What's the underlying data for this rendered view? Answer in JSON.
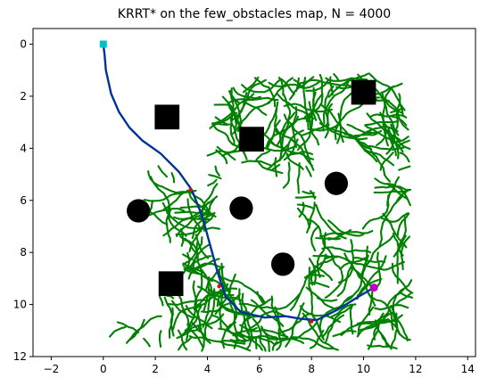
{
  "chart_data": {
    "type": "scatter",
    "title": "KRRT* on the few_obstacles map, N = 4000",
    "xlabel": "",
    "ylabel": "",
    "xlim": [
      -2.7,
      14.3
    ],
    "ylim": [
      12,
      -0.6
    ],
    "y_inverted": true,
    "grid": false,
    "xticks": [
      -2,
      0,
      2,
      4,
      6,
      8,
      10,
      12,
      14
    ],
    "yticks": [
      0,
      2,
      4,
      6,
      8,
      10,
      12
    ],
    "colors": {
      "tree": "#008000",
      "path": "#003399",
      "start": "#00c0c8",
      "goal": "#c000c0",
      "waypoint": "#d01010",
      "obstacle": "#000000"
    },
    "start": [
      0,
      0
    ],
    "goal": [
      10.4,
      9.35
    ],
    "obstacles": [
      {
        "shape": "square",
        "x": 2.45,
        "y": 2.8,
        "size": 0.95
      },
      {
        "shape": "square",
        "x": 5.7,
        "y": 3.65,
        "size": 0.95
      },
      {
        "shape": "square",
        "x": 10.0,
        "y": 1.85,
        "size": 0.95
      },
      {
        "shape": "square",
        "x": 2.6,
        "y": 9.2,
        "size": 0.95
      },
      {
        "shape": "circle",
        "x": 1.35,
        "y": 6.4,
        "r": 0.45
      },
      {
        "shape": "circle",
        "x": 5.3,
        "y": 6.3,
        "r": 0.45
      },
      {
        "shape": "circle",
        "x": 8.95,
        "y": 5.35,
        "r": 0.45
      },
      {
        "shape": "circle",
        "x": 6.9,
        "y": 8.45,
        "r": 0.45
      }
    ],
    "tree_region": [
      [
        1.0,
        4.3
      ],
      [
        2.0,
        4.6
      ],
      [
        3.0,
        5.0
      ],
      [
        3.8,
        5.6
      ],
      [
        4.0,
        4.2
      ],
      [
        4.2,
        2.2
      ],
      [
        5.5,
        1.3
      ],
      [
        7.5,
        1.2
      ],
      [
        9.5,
        1.0
      ],
      [
        11.6,
        1.0
      ],
      [
        11.8,
        3.5
      ],
      [
        11.8,
        6.5
      ],
      [
        11.9,
        9.0
      ],
      [
        11.8,
        11.8
      ],
      [
        9.0,
        11.8
      ],
      [
        6.0,
        11.8
      ],
      [
        3.5,
        11.9
      ],
      [
        1.6,
        11.6
      ],
      [
        0.0,
        11.6
      ],
      [
        0.5,
        10.6
      ],
      [
        2.0,
        10.5
      ],
      [
        2.0,
        9.9
      ],
      [
        3.0,
        8.6
      ],
      [
        3.0,
        7.8
      ],
      [
        1.5,
        7.3
      ],
      [
        1.5,
        5.2
      ],
      [
        1.0,
        4.6
      ]
    ],
    "tree_holes": [
      [
        [
          4.6,
          4.8
        ],
        [
          5.6,
          4.5
        ],
        [
          6.6,
          5.0
        ],
        [
          7.4,
          6.3
        ],
        [
          7.8,
          8.0
        ],
        [
          7.7,
          9.4
        ],
        [
          6.8,
          9.8
        ],
        [
          5.5,
          9.3
        ],
        [
          4.6,
          8.2
        ],
        [
          4.4,
          6.2
        ]
      ],
      [
        [
          8.1,
          4.0
        ],
        [
          9.7,
          3.9
        ],
        [
          10.5,
          4.8
        ],
        [
          10.2,
          6.3
        ],
        [
          9.2,
          7.0
        ],
        [
          8.3,
          6.6
        ],
        [
          8.1,
          5.2
        ]
      ],
      [
        [
          0.3,
          7.9
        ],
        [
          1.8,
          7.7
        ],
        [
          2.5,
          8.3
        ],
        [
          2.2,
          9.3
        ],
        [
          0.9,
          9.5
        ],
        [
          0.3,
          8.7
        ]
      ]
    ],
    "path": [
      [
        0.0,
        0.0
      ],
      [
        0.05,
        0.4
      ],
      [
        0.1,
        1.0
      ],
      [
        0.3,
        1.9
      ],
      [
        0.6,
        2.6
      ],
      [
        1.0,
        3.2
      ],
      [
        1.5,
        3.7
      ],
      [
        2.2,
        4.2
      ],
      [
        2.9,
        4.9
      ],
      [
        3.4,
        5.6
      ],
      [
        3.8,
        6.6
      ],
      [
        4.1,
        7.7
      ],
      [
        4.4,
        8.8
      ],
      [
        4.7,
        9.7
      ],
      [
        5.3,
        10.3
      ],
      [
        6.2,
        10.5
      ],
      [
        7.0,
        10.45
      ],
      [
        7.6,
        10.55
      ],
      [
        8.2,
        10.6
      ],
      [
        9.0,
        10.2
      ],
      [
        9.8,
        9.7
      ],
      [
        10.4,
        9.35
      ]
    ],
    "waypoints": [
      [
        3.35,
        5.6
      ],
      [
        4.45,
        9.3
      ],
      [
        8.0,
        10.65
      ]
    ]
  }
}
